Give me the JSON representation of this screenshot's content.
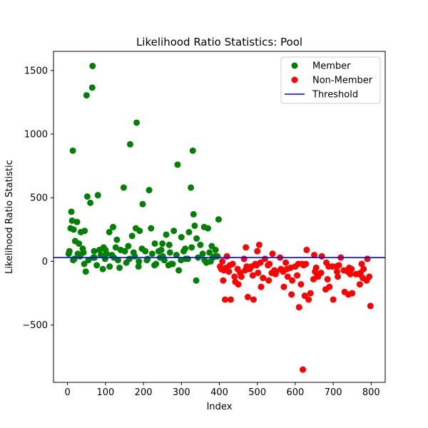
{
  "chart_data": {
    "type": "scatter",
    "title": "Likelihood Ratio Statistics: Pool",
    "xlabel": "Index",
    "ylabel": "Likelihood Ratio Statistic",
    "xlim": [
      -37,
      837
    ],
    "ylim": [
      -950,
      1650
    ],
    "xticks": [
      0,
      100,
      200,
      300,
      400,
      500,
      600,
      700,
      800
    ],
    "yticks": [
      -500,
      0,
      500,
      1000,
      1500
    ],
    "legend_position": "top-right",
    "threshold": {
      "name": "Threshold",
      "value": 30,
      "color": "#0000ff"
    },
    "series": [
      {
        "name": "Member",
        "color": "#008000",
        "x": [
          5,
          8,
          10,
          12,
          14,
          16,
          20,
          25,
          30,
          35,
          40,
          45,
          50,
          52,
          60,
          65,
          66,
          70,
          80,
          95,
          100,
          110,
          120,
          130,
          140,
          148,
          160,
          165,
          170,
          180,
          182,
          190,
          198,
          205,
          215,
          220,
          230,
          240,
          250,
          260,
          270,
          280,
          290,
          300,
          310,
          320,
          325,
          330,
          332,
          335,
          340,
          350,
          360,
          370,
          380,
          390,
          398,
          33,
          44,
          55,
          77,
          88,
          99,
          111,
          122,
          133,
          155,
          177,
          188,
          211,
          233,
          244,
          255,
          266,
          277,
          299,
          311,
          344,
          366,
          377,
          388,
          15,
          27,
          48,
          71,
          93,
          117,
          137,
          163,
          187,
          209,
          229,
          251,
          273,
          293,
          317,
          339,
          361,
          383,
          3,
          18,
          42,
          68,
          84,
          103,
          127,
          151,
          174,
          196,
          223,
          247,
          268,
          287,
          306,
          327,
          356,
          374,
          395
        ],
        "y": [
          80,
          260,
          390,
          320,
          870,
          250,
          160,
          310,
          140,
          230,
          100,
          240,
          1305,
          510,
          460,
          1365,
          1535,
          80,
          520,
          110,
          90,
          230,
          270,
          170,
          90,
          580,
          120,
          920,
          200,
          260,
          1090,
          240,
          450,
          80,
          560,
          260,
          140,
          80,
          140,
          210,
          70,
          240,
          760,
          190,
          100,
          230,
          580,
          870,
          370,
          280,
          180,
          130,
          270,
          260,
          120,
          90,
          330,
          40,
          -20,
          10,
          -30,
          50,
          20,
          -40,
          30,
          10,
          -10,
          40,
          0,
          20,
          -20,
          30,
          10,
          -30,
          -20,
          10,
          20,
          30,
          -10,
          0,
          40,
          10,
          60,
          -80,
          30,
          -60,
          50,
          -50,
          20,
          -40,
          10,
          -30,
          40,
          -20,
          -70,
          20,
          -150,
          10,
          30,
          60,
          20,
          70,
          30,
          90,
          60,
          110,
          80,
          70,
          100,
          60,
          90,
          130,
          50,
          80,
          110,
          60,
          70,
          40
        ]
      },
      {
        "name": "Non-Member",
        "color": "#ff0000",
        "x": [
          402,
          410,
          415,
          420,
          425,
          430,
          440,
          450,
          465,
          470,
          475,
          480,
          490,
          495,
          500,
          505,
          510,
          520,
          530,
          540,
          550,
          560,
          570,
          580,
          590,
          600,
          610,
          615,
          620,
          625,
          630,
          635,
          640,
          650,
          660,
          670,
          680,
          690,
          700,
          710,
          720,
          730,
          740,
          750,
          760,
          770,
          780,
          790,
          795,
          798,
          405,
          435,
          455,
          485,
          515,
          545,
          575,
          605,
          655,
          685,
          715,
          745,
          775,
          412,
          442,
          472,
          502,
          532,
          562,
          592,
          622,
          652,
          682,
          712,
          742,
          772,
          408,
          448,
          488,
          528,
          568,
          608,
          648,
          688,
          728,
          768,
          418,
          458,
          498,
          538,
          578,
          618,
          658,
          698,
          738,
          778,
          428,
          468,
          508,
          548,
          588,
          628,
          668,
          708,
          748,
          788
        ],
        "y": [
          -40,
          -150,
          -300,
          40,
          -80,
          -300,
          -120,
          -180,
          20,
          110,
          -280,
          -60,
          -300,
          -20,
          80,
          130,
          -200,
          20,
          -150,
          60,
          -80,
          30,
          -200,
          -120,
          -260,
          -40,
          -360,
          -180,
          -850,
          -270,
          90,
          -300,
          -250,
          50,
          -120,
          40,
          -220,
          -200,
          -300,
          -80,
          30,
          -240,
          -260,
          -250,
          -100,
          -180,
          -60,
          20,
          -120,
          -350,
          -60,
          -20,
          -90,
          -40,
          -130,
          -70,
          -10,
          -110,
          -50,
          -140,
          -30,
          -100,
          -20,
          -70,
          -160,
          -40,
          -90,
          -20,
          -60,
          -150,
          -30,
          -80,
          -10,
          -120,
          -50,
          -90,
          0,
          -60,
          -110,
          -30,
          -80,
          -20,
          -140,
          -40,
          -70,
          -100,
          -50,
          -120,
          -30,
          -90,
          -60,
          -20,
          -110,
          -40,
          -80,
          -130,
          -30,
          -70,
          -10,
          -100,
          -50,
          -20,
          -90,
          -40,
          -60,
          -150
        ]
      }
    ]
  }
}
